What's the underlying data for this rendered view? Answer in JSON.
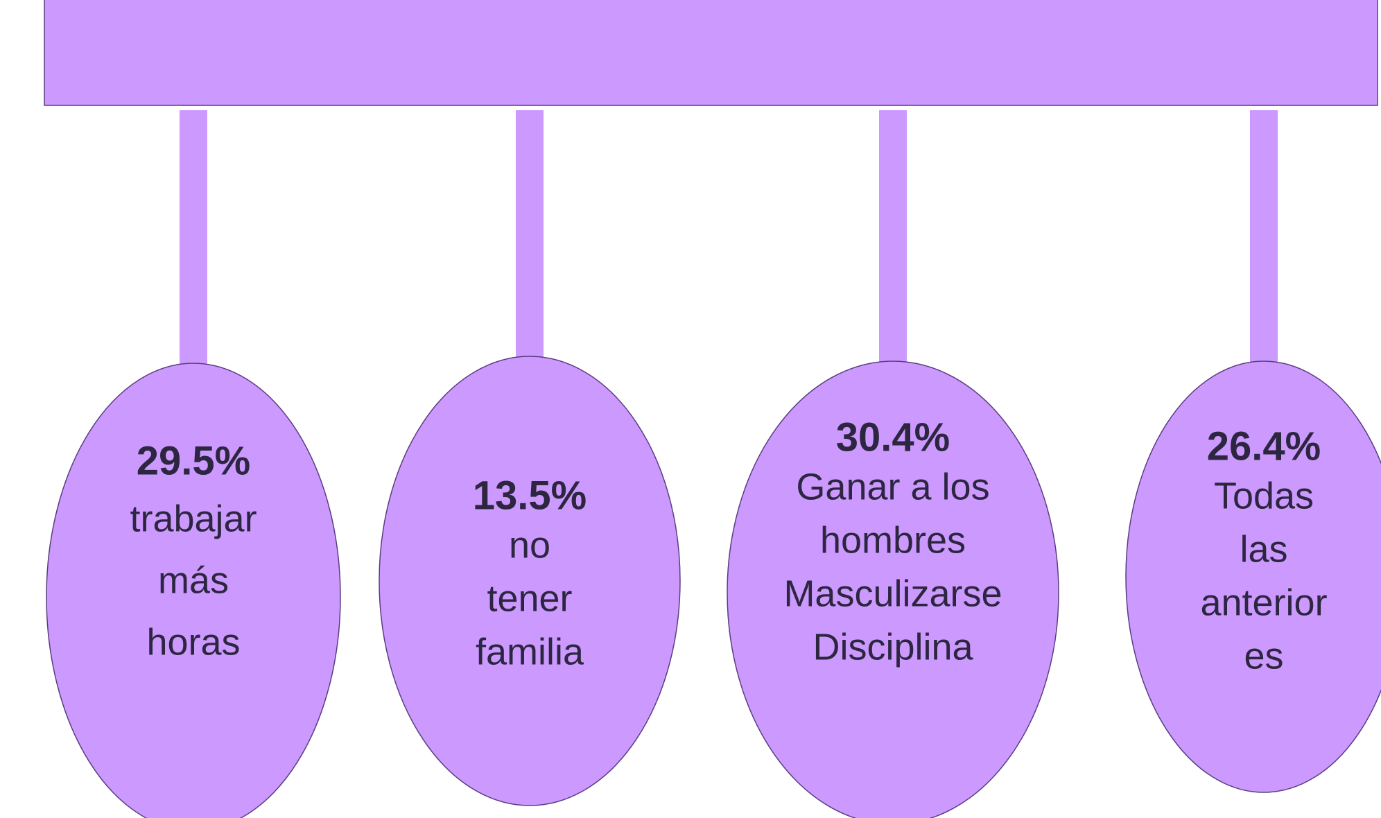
{
  "nodes": [
    {
      "percent": "29.5%",
      "lines": [
        "trabajar",
        "más",
        "horas"
      ]
    },
    {
      "percent": "13.5%",
      "lines": [
        "no",
        "tener",
        "familia"
      ]
    },
    {
      "percent": "30.4%",
      "lines": [
        "Ganar a los",
        "hombres",
        "Masculizarse",
        "Disciplina"
      ]
    },
    {
      "percent": "26.4%",
      "lines": [
        "Todas",
        "las",
        "anterior",
        "es"
      ]
    }
  ]
}
